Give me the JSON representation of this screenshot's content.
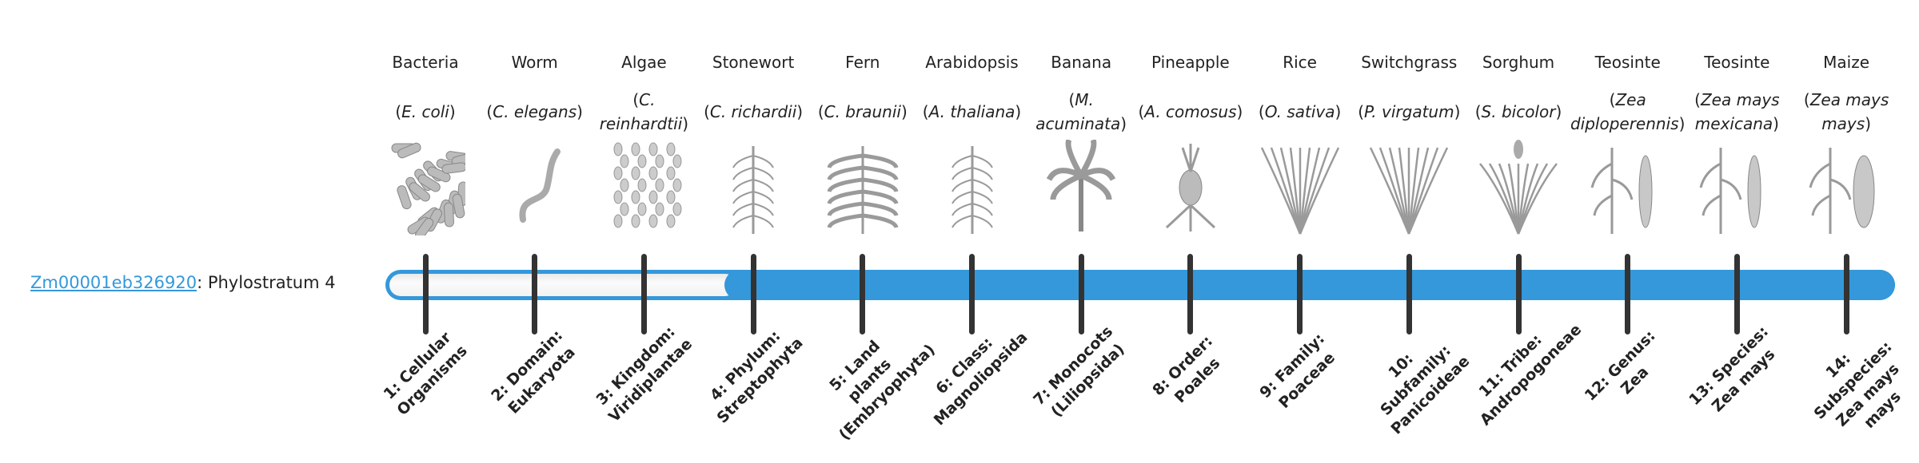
{
  "gene": {
    "id": "Zm00001eb326920",
    "suffix": ": Phylostratum 4",
    "phylostratum": 4
  },
  "colors": {
    "accent": "#3498db",
    "tick": "#333333"
  },
  "organisms": [
    {
      "common": "Bacteria",
      "species": "E. coli",
      "icon": "bacteria-icon"
    },
    {
      "common": "Worm",
      "species": "C. elegans",
      "icon": "worm-icon"
    },
    {
      "common": "Algae",
      "species": "C. reinhardtii",
      "icon": "algae-icon"
    },
    {
      "common": "Stonewort",
      "species": "C. richardii",
      "icon": "stonewort-icon"
    },
    {
      "common": "Fern",
      "species": "C. braunii",
      "icon": "fern-icon"
    },
    {
      "common": "Arabidopsis",
      "species": "A. thaliana",
      "icon": "arabidopsis-icon"
    },
    {
      "common": "Banana",
      "species": "M. acuminata",
      "icon": "banana-icon"
    },
    {
      "common": "Pineapple",
      "species": "A. comosus",
      "icon": "pineapple-icon"
    },
    {
      "common": "Rice",
      "species": "O. sativa",
      "icon": "rice-icon"
    },
    {
      "common": "Switchgrass",
      "species": "P. virgatum",
      "icon": "switchgrass-icon"
    },
    {
      "common": "Sorghum",
      "species": "S. bicolor",
      "icon": "sorghum-icon"
    },
    {
      "common": "Teosinte",
      "species": "Zea diploperennis",
      "icon": "teosinte-icon"
    },
    {
      "common": "Teosinte",
      "species": "Zea mays mexicana",
      "icon": "teosinte-icon"
    },
    {
      "common": "Maize",
      "species": "Zea mays mays",
      "icon": "maize-icon"
    }
  ],
  "strata": [
    "1: Cellular Organisms",
    "2: Domain: Eukaryota",
    "3: Kingdom: Viridiplantae",
    "4: Phylum: Streptophyta",
    "5: Land plants (Embryophyta)",
    "6: Class: Magnoliopsida",
    "7: Monocots (Liliopsida)",
    "8: Order: Poales",
    "9: Family: Poaceae",
    "10: Subfamily: Panicoideae",
    "11: Tribe: Andropogoneae",
    "12: Genus: Zea",
    "13: Species: Zea mays",
    "14: Subspecies: Zea mays mays"
  ]
}
